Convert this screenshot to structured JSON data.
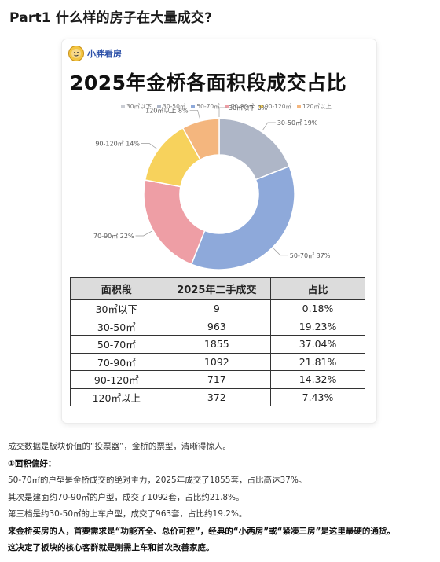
{
  "part_title": "Part1 什么样的房子在大量成交?",
  "logo": {
    "text": "小胖看房",
    "icon": "cartoon-face-icon"
  },
  "chart_data": {
    "type": "pie",
    "title": "2025年金桥各面积段成交占比",
    "legend_position": "top",
    "categories": [
      "30㎡以下",
      "30-50㎡",
      "50-70㎡",
      "70-90㎡",
      "90-120㎡",
      "120㎡以上"
    ],
    "values": [
      0,
      19,
      37,
      22,
      14,
      8
    ],
    "slice_labels": [
      "30㎡以下 0%",
      "30-50㎡ 19%",
      "50-70㎡ 37%",
      "70-90㎡ 22%",
      "90-120㎡ 14%",
      "120㎡以上 8%"
    ],
    "colors": [
      "#c9ccd3",
      "#aeb6c7",
      "#8ea9da",
      "#ee9ea5",
      "#f7d25c",
      "#f4b67e"
    ]
  },
  "table": {
    "headers": [
      "面积段",
      "2025年二手成交",
      "占比"
    ],
    "rows": [
      [
        "30㎡以下",
        "9",
        "0.18%"
      ],
      [
        "30-50㎡",
        "963",
        "19.23%"
      ],
      [
        "50-70㎡",
        "1855",
        "37.04%"
      ],
      [
        "70-90㎡",
        "1092",
        "21.81%"
      ],
      [
        "90-120㎡",
        "717",
        "14.32%"
      ],
      [
        "120㎡以上",
        "372",
        "7.43%"
      ]
    ]
  },
  "body": {
    "line1": "成交数据是板块价值的“投票器”，金桥的票型，清晰得惊人。",
    "line2": "①面积偏好：",
    "line3": "50-70㎡的户型是金桥成交的绝对主力，2025年成交了1855套，占比高达37%。",
    "line4": "其次是建面约70-90㎡的户型，成交了1092套，占比约21.8%。",
    "line5": "第三档是约30-50㎡的上车户型，成交了963套，占比约19.2%。",
    "line6": "来金桥买房的人，首要需求是“功能齐全、总价可控”，经典的“小两房”或“紧凑三房”是这里最硬的通货。",
    "line7": "这决定了板块的核心客群就是刚需上车和首次改善家庭。"
  }
}
